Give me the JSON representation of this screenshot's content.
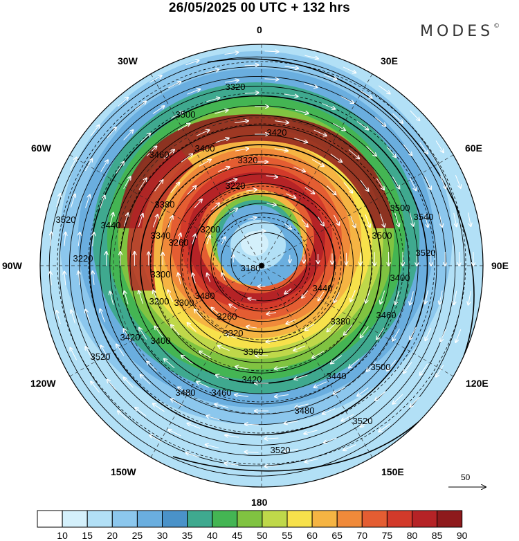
{
  "title": "26/05/2025  00 UTC  + 132 hrs",
  "logo": "MODES",
  "logo_mark": "©",
  "longitude_labels": {
    "n": "0",
    "ne30": "30E",
    "ne60": "60E",
    "e": "90E",
    "se120": "120E",
    "se150": "150E",
    "s": "180",
    "sw150": "150W",
    "sw120": "120W",
    "w": "90W",
    "nw60": "60W",
    "nw30": "30W"
  },
  "contour_labels": [
    "3320",
    "3500",
    "3420",
    "3400",
    "3460",
    "3320",
    "3220",
    "3380",
    "3500",
    "3540",
    "3520",
    "3200",
    "3260",
    "3340",
    "3440",
    "3520",
    "3500",
    "3180",
    "3220",
    "3300",
    "3400",
    "3480",
    "3420",
    "3440",
    "3460",
    "3260",
    "3200",
    "3300",
    "3320",
    "3380",
    "3400",
    "3360",
    "3420",
    "3440",
    "3500",
    "3520",
    "3480",
    "3460",
    "3480",
    "3520",
    "3520"
  ],
  "colorbar": {
    "labels": [
      "10",
      "15",
      "20",
      "25",
      "30",
      "35",
      "40",
      "45",
      "50",
      "55",
      "60",
      "65",
      "70",
      "75",
      "80",
      "85",
      "90"
    ],
    "colors": [
      "#ffffff",
      "#d4f0fb",
      "#b2e0f6",
      "#8cc7ed",
      "#6aaedf",
      "#4a92c9",
      "#3fa98f",
      "#44b553",
      "#80c341",
      "#bfd84a",
      "#f7e14b",
      "#f5b443",
      "#f08a3a",
      "#e45d32",
      "#d23a2a",
      "#b52326",
      "#8e1a1c"
    ]
  },
  "vector_scale_label": "50"
}
